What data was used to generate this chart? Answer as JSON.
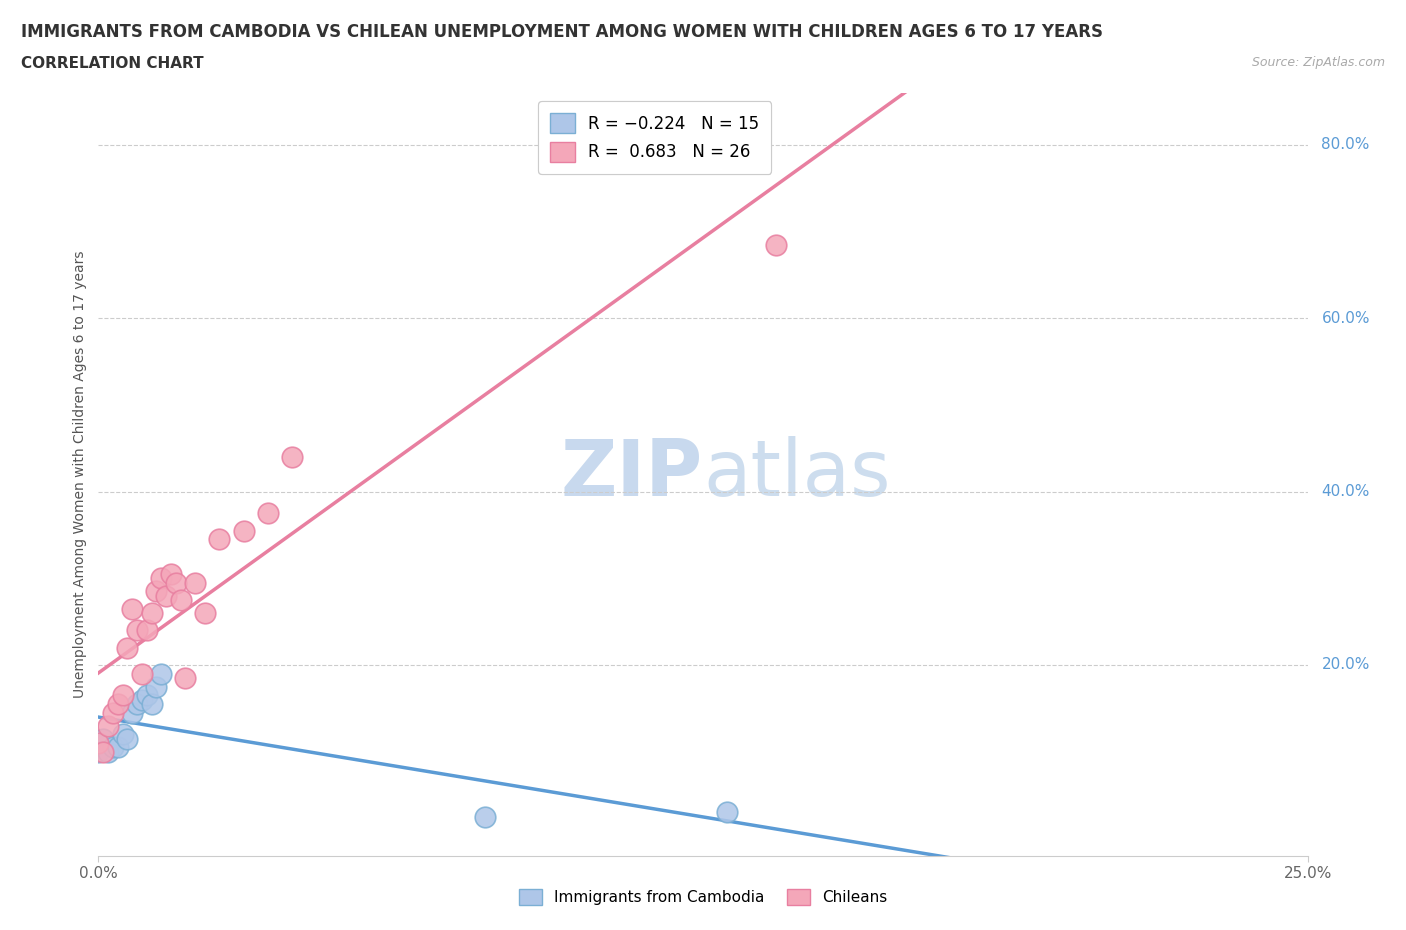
{
  "title_line1": "IMMIGRANTS FROM CAMBODIA VS CHILEAN UNEMPLOYMENT AMONG WOMEN WITH CHILDREN AGES 6 TO 17 YEARS",
  "title_line2": "CORRELATION CHART",
  "source_text": "Source: ZipAtlas.com",
  "ylabel": "Unemployment Among Women with Children Ages 6 to 17 years",
  "xlim": [
    0.0,
    0.25
  ],
  "ylim": [
    -0.02,
    0.86
  ],
  "ytick_labels": [
    "20.0%",
    "40.0%",
    "60.0%",
    "80.0%"
  ],
  "ytick_values": [
    0.2,
    0.4,
    0.6,
    0.8
  ],
  "cambodia_color": "#aec6e8",
  "chilean_color": "#f4a7b9",
  "cambodia_edge": "#7bafd4",
  "chilean_edge": "#e87fa0",
  "regression_cambodia_color": "#5b9bd5",
  "regression_chilean_color": "#e87fa0",
  "watermark_color": "#d4e3f5",
  "background_color": "#ffffff",
  "cambodia_x": [
    0.0,
    0.001,
    0.002,
    0.003,
    0.004,
    0.005,
    0.006,
    0.007,
    0.008,
    0.009,
    0.01,
    0.011,
    0.012,
    0.013,
    0.08,
    0.13
  ],
  "cambodia_y": [
    0.1,
    0.115,
    0.1,
    0.105,
    0.105,
    0.12,
    0.115,
    0.145,
    0.155,
    0.16,
    0.165,
    0.155,
    0.175,
    0.19,
    0.025,
    0.03
  ],
  "chilean_x": [
    0.0,
    0.001,
    0.002,
    0.003,
    0.004,
    0.005,
    0.006,
    0.007,
    0.008,
    0.009,
    0.01,
    0.011,
    0.012,
    0.013,
    0.014,
    0.015,
    0.016,
    0.017,
    0.018,
    0.02,
    0.022,
    0.025,
    0.03,
    0.035,
    0.04,
    0.14
  ],
  "chilean_y": [
    0.11,
    0.1,
    0.13,
    0.145,
    0.155,
    0.165,
    0.22,
    0.265,
    0.24,
    0.19,
    0.24,
    0.26,
    0.285,
    0.3,
    0.28,
    0.305,
    0.295,
    0.275,
    0.185,
    0.295,
    0.26,
    0.345,
    0.355,
    0.375,
    0.44,
    0.685
  ]
}
